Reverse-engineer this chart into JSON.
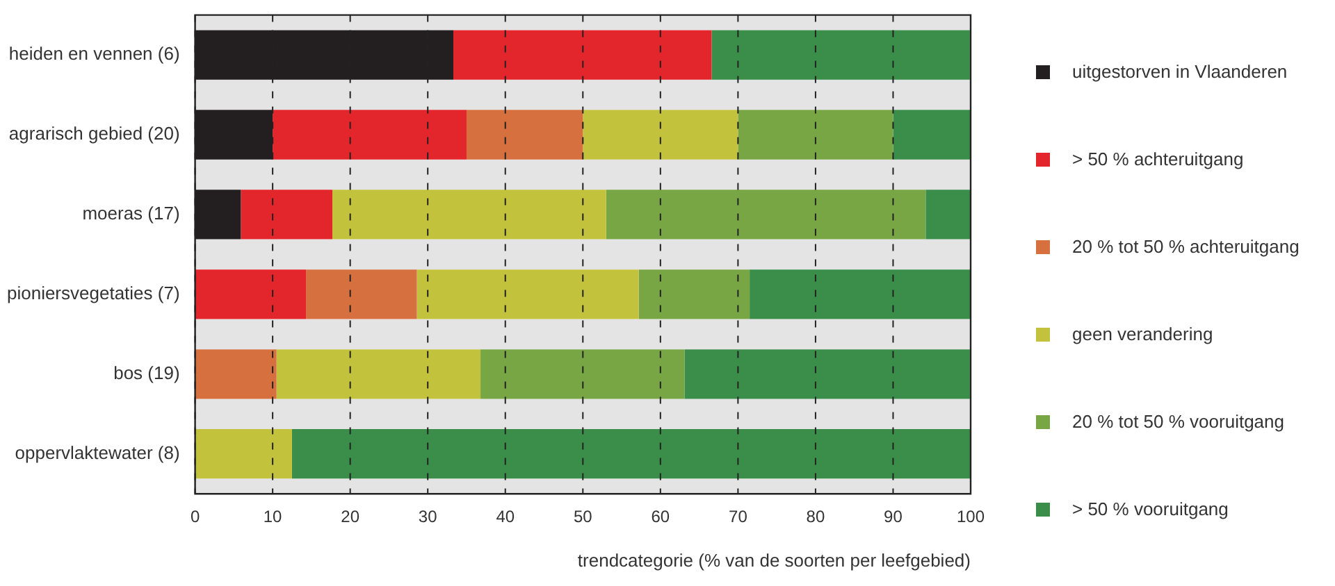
{
  "chart_data": {
    "type": "bar",
    "orientation": "horizontal",
    "stacked": true,
    "xlabel": "trendcategorie (% van de soorten per leefgebied)",
    "categories": [
      "heiden en vennen (6)",
      "agrarisch gebied (20)",
      "moeras (17)",
      "pioniersvegetaties (7)",
      "bos (19)",
      "oppervlaktewater (8)"
    ],
    "series": [
      {
        "name": "uitgestorven in Vlaanderen",
        "color": "#231f20",
        "values": [
          33.3,
          10,
          5.9,
          0,
          0,
          0
        ]
      },
      {
        "name": "> 50 % achteruitgang",
        "color": "#e3262c",
        "values": [
          33.3,
          25,
          11.8,
          14.3,
          0,
          0
        ]
      },
      {
        "name": "20 % tot 50 % achteruitgang",
        "color": "#d6703e",
        "values": [
          0,
          15,
          0,
          14.3,
          10.5,
          0
        ]
      },
      {
        "name": "geen verandering",
        "color": "#c3c23d",
        "values": [
          0,
          20,
          35.3,
          28.6,
          26.3,
          12.5
        ]
      },
      {
        "name": "20 % tot 50 % vooruitgang",
        "color": "#78a645",
        "values": [
          0,
          20,
          41.2,
          14.3,
          26.3,
          0
        ]
      },
      {
        "name": "> 50 % vooruitgang",
        "color": "#3a8e49",
        "values": [
          33.3,
          10,
          5.9,
          28.6,
          36.8,
          87.5
        ]
      }
    ],
    "xlim": [
      0,
      100
    ],
    "xticks": [
      0,
      10,
      20,
      30,
      40,
      50,
      60,
      70,
      80,
      90,
      100
    ],
    "grid": "x",
    "legend": "right"
  }
}
